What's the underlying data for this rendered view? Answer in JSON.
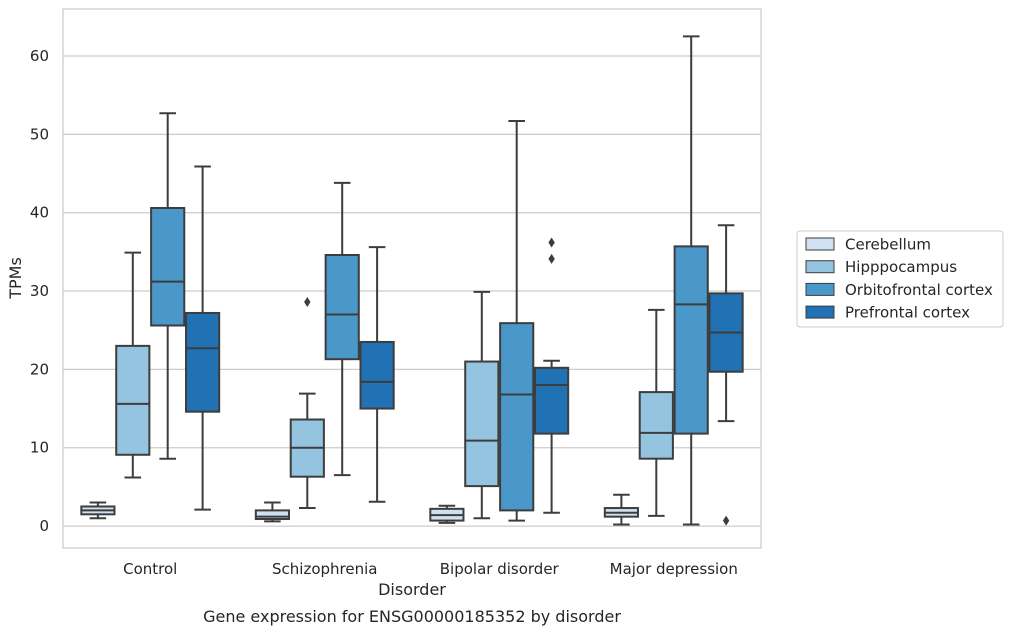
{
  "chart_data": {
    "type": "box",
    "title": "",
    "caption": "Gene expression for ENSG00000185352 by disorder",
    "xlabel": "Disorder",
    "ylabel": "TPMs",
    "ylim": [
      -2.8,
      66
    ],
    "yticks": [
      0,
      10,
      20,
      30,
      40,
      50,
      60
    ],
    "grid": "horizontal",
    "legend_position": "right",
    "categories": [
      "Control",
      "Schizophrenia",
      "Bipolar disorder",
      "Major depression"
    ],
    "series": [
      {
        "name": "Cerebellum",
        "color": "#d0e1f2",
        "boxes": [
          {
            "whislo": 1.0,
            "q1": 1.5,
            "med": 2.0,
            "q3": 2.5,
            "whishi": 3.0,
            "fliers": []
          },
          {
            "whislo": 0.6,
            "q1": 0.9,
            "med": 1.2,
            "q3": 2.0,
            "whishi": 3.0,
            "fliers": []
          },
          {
            "whislo": 0.4,
            "q1": 0.7,
            "med": 1.4,
            "q3": 2.2,
            "whishi": 2.6,
            "fliers": []
          },
          {
            "whislo": 0.2,
            "q1": 1.2,
            "med": 1.7,
            "q3": 2.3,
            "whishi": 4.0,
            "fliers": []
          }
        ]
      },
      {
        "name": "Hipppocampus",
        "color": "#94c4df",
        "boxes": [
          {
            "whislo": 6.2,
            "q1": 9.1,
            "med": 15.6,
            "q3": 23.0,
            "whishi": 34.9,
            "fliers": []
          },
          {
            "whislo": 2.3,
            "q1": 6.3,
            "med": 10.0,
            "q3": 13.6,
            "whishi": 16.9,
            "fliers": [
              28.6
            ]
          },
          {
            "whislo": 1.0,
            "q1": 5.1,
            "med": 10.9,
            "q3": 21.0,
            "whishi": 29.9,
            "fliers": []
          },
          {
            "whislo": 1.3,
            "q1": 8.6,
            "med": 11.9,
            "q3": 17.1,
            "whishi": 27.6,
            "fliers": []
          }
        ]
      },
      {
        "name": "Orbitofrontal cortex",
        "color": "#4a98c9",
        "boxes": [
          {
            "whislo": 8.6,
            "q1": 25.6,
            "med": 31.2,
            "q3": 40.6,
            "whishi": 52.7,
            "fliers": []
          },
          {
            "whislo": 6.5,
            "q1": 21.3,
            "med": 27.0,
            "q3": 34.6,
            "whishi": 43.8,
            "fliers": []
          },
          {
            "whislo": 0.7,
            "q1": 2.0,
            "med": 16.8,
            "q3": 25.9,
            "whishi": 51.7,
            "fliers": []
          },
          {
            "whislo": 0.2,
            "q1": 11.8,
            "med": 28.3,
            "q3": 35.7,
            "whishi": 62.5,
            "fliers": []
          }
        ]
      },
      {
        "name": "Prefrontal cortex",
        "color": "#2171b5",
        "boxes": [
          {
            "whislo": 2.1,
            "q1": 14.6,
            "med": 22.7,
            "q3": 27.2,
            "whishi": 45.9,
            "fliers": []
          },
          {
            "whislo": 3.1,
            "q1": 15.0,
            "med": 18.4,
            "q3": 23.5,
            "whishi": 35.6,
            "fliers": []
          },
          {
            "whislo": 1.7,
            "q1": 11.8,
            "med": 18.0,
            "q3": 20.2,
            "whishi": 21.1,
            "fliers": [
              34.1,
              36.2
            ]
          },
          {
            "whislo": 13.4,
            "q1": 19.7,
            "med": 24.7,
            "q3": 29.7,
            "whishi": 38.4,
            "fliers": [
              0.7
            ]
          }
        ]
      }
    ]
  }
}
